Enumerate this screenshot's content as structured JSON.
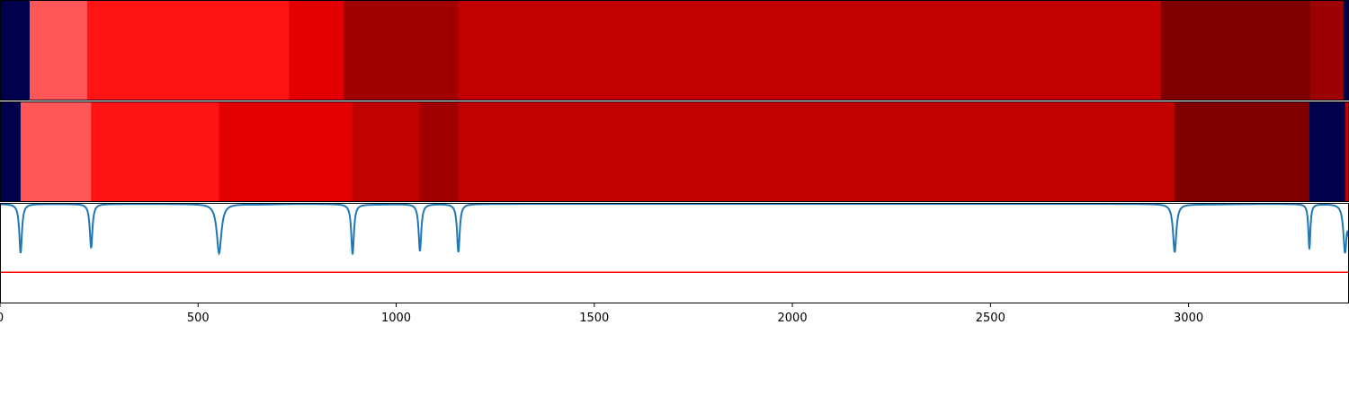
{
  "chart_data": [
    {
      "type": "heatmap",
      "panel": "top",
      "segments": [
        {
          "start": 0,
          "end": 75,
          "color": "#00004c"
        },
        {
          "start": 75,
          "end": 220,
          "color": "#ff5757"
        },
        {
          "start": 220,
          "end": 730,
          "color": "#ff1313"
        },
        {
          "start": 730,
          "end": 868,
          "color": "#e20000"
        },
        {
          "start": 868,
          "end": 1155,
          "color": "#a00000"
        },
        {
          "start": 1155,
          "end": 2930,
          "color": "#c10000"
        },
        {
          "start": 2930,
          "end": 3308,
          "color": "#800000"
        },
        {
          "start": 3308,
          "end": 3392,
          "color": "#9d0000"
        },
        {
          "start": 3392,
          "end": 3405,
          "color": "#00004c"
        }
      ]
    },
    {
      "type": "heatmap",
      "panel": "middle",
      "segments": [
        {
          "start": 0,
          "end": 52,
          "color": "#00004c"
        },
        {
          "start": 52,
          "end": 230,
          "color": "#ff5757"
        },
        {
          "start": 230,
          "end": 553,
          "color": "#ff1313"
        },
        {
          "start": 553,
          "end": 890,
          "color": "#e20000"
        },
        {
          "start": 890,
          "end": 1060,
          "color": "#c10000"
        },
        {
          "start": 1060,
          "end": 1157,
          "color": "#a00000"
        },
        {
          "start": 1157,
          "end": 2965,
          "color": "#c10000"
        },
        {
          "start": 2965,
          "end": 3305,
          "color": "#800000"
        },
        {
          "start": 3305,
          "end": 3395,
          "color": "#00004c"
        },
        {
          "start": 3395,
          "end": 3405,
          "color": "#c10000"
        }
      ]
    },
    {
      "type": "line",
      "panel": "bottom",
      "xlim": [
        0,
        3405
      ],
      "ylim": [
        0,
        1
      ],
      "xticks": [
        0,
        500,
        1000,
        1500,
        2000,
        2500,
        3000
      ],
      "xtick_labels": [
        "0",
        "500",
        "1000",
        "1500",
        "2000",
        "2500",
        "3000"
      ],
      "grid": false,
      "threshold": {
        "value": 0.31,
        "color": "#ff0000"
      },
      "series": [
        {
          "color": "#1f77b4",
          "baseline": 0.99,
          "dips": [
            {
              "x": 52,
              "y": 0.5,
              "width": 4
            },
            {
              "x": 230,
              "y": 0.55,
              "width": 4
            },
            {
              "x": 553,
              "y": 0.5,
              "width": 7
            },
            {
              "x": 890,
              "y": 0.49,
              "width": 4
            },
            {
              "x": 1060,
              "y": 0.52,
              "width": 4
            },
            {
              "x": 1157,
              "y": 0.51,
              "width": 4
            },
            {
              "x": 2965,
              "y": 0.51,
              "width": 5
            },
            {
              "x": 3305,
              "y": 0.54,
              "width": 3
            },
            {
              "x": 3395,
              "y": 0.5,
              "width": 5
            }
          ],
          "shoulders": [
            {
              "x": 660,
              "y": 0.985,
              "width": 50
            },
            {
              "x": 945,
              "y": 0.985,
              "width": 60
            },
            {
              "x": 3050,
              "y": 0.985,
              "width": 90
            }
          ],
          "end_value": 0.64
        }
      ]
    }
  ]
}
